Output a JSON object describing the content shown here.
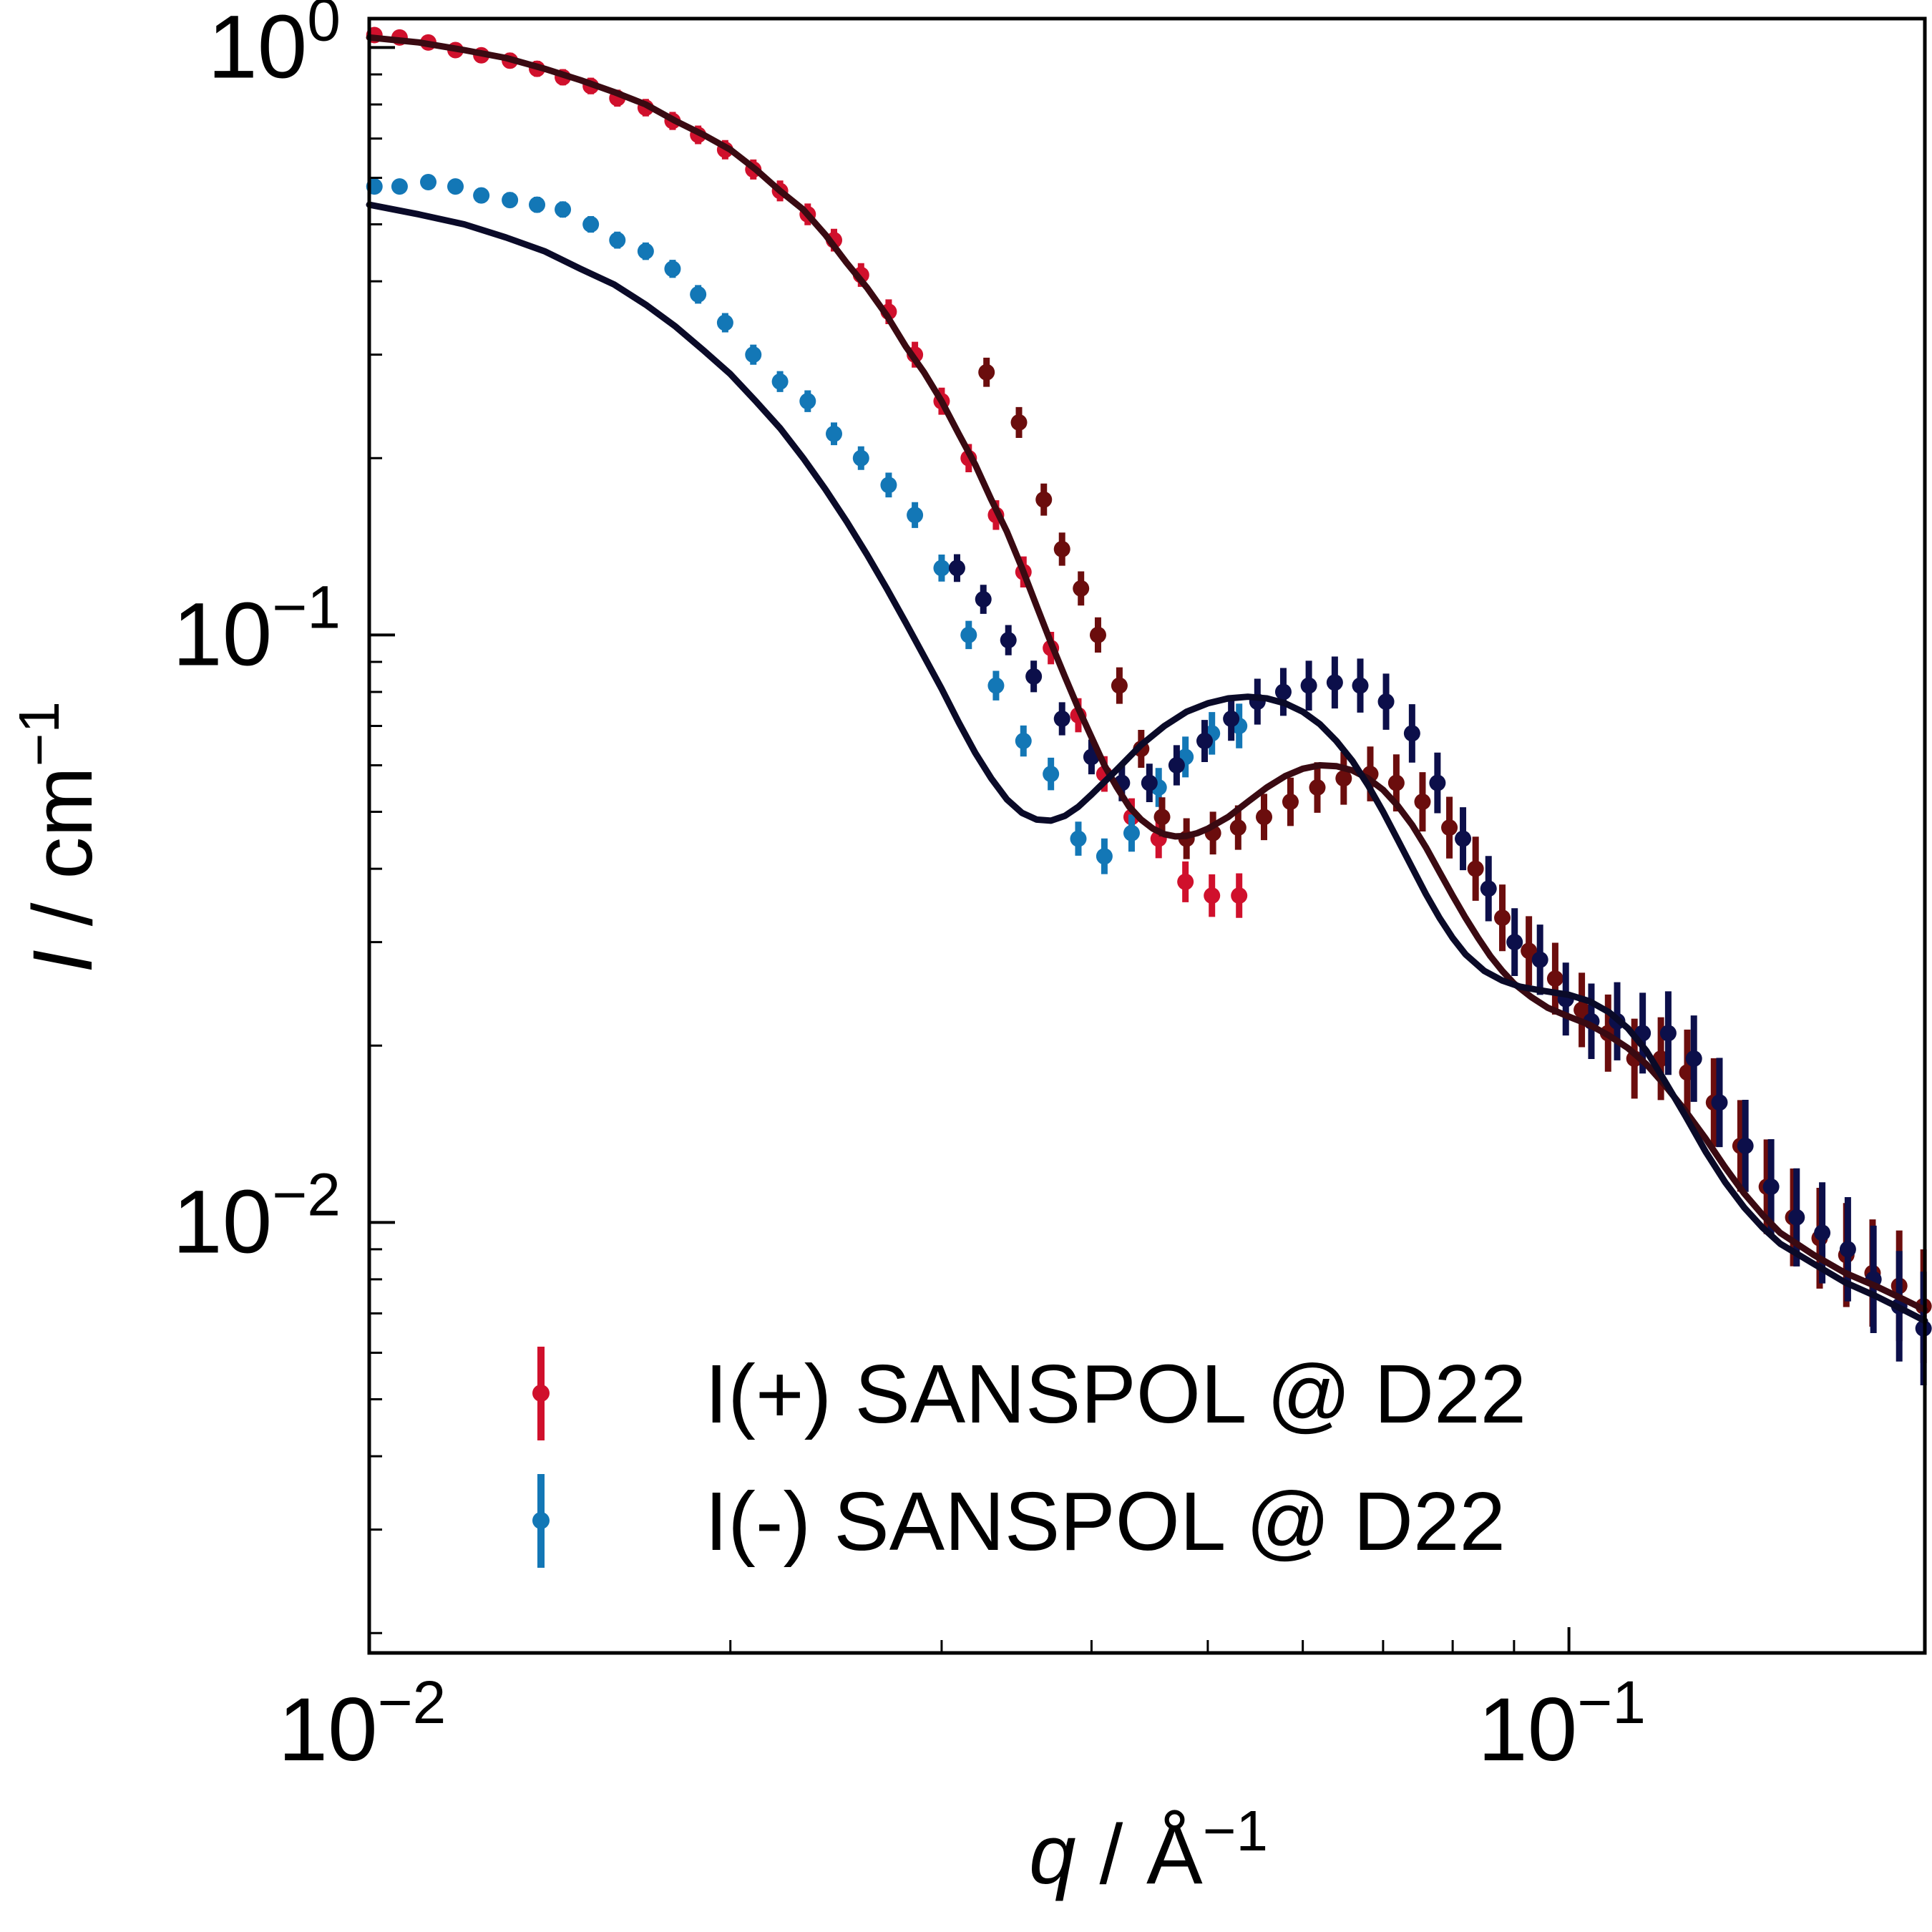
{
  "chart_data": {
    "type": "scatter",
    "x_scale": "log",
    "y_scale": "log",
    "xlim": [
      0.01,
      0.198
    ],
    "ylim": [
      0.00185,
      1.12
    ],
    "grid": false,
    "legend_placement": "lower-center",
    "xlabel": {
      "var": "q",
      "sep": " / ",
      "unit": "Å",
      "exp": "−1"
    },
    "ylabel": {
      "var": "I",
      "sep": " / ",
      "unit": "cm",
      "exp": "−1"
    },
    "x_ticks": [
      {
        "value": 0.01,
        "base": "10",
        "exp": "−2"
      },
      {
        "value": 0.1,
        "base": "10",
        "exp": "−1"
      }
    ],
    "y_ticks": [
      {
        "value": 0.01,
        "base": "10",
        "exp": "−2"
      },
      {
        "value": 0.1,
        "base": "10",
        "exp": "−1"
      },
      {
        "value": 1,
        "base": "10",
        "exp": "0"
      }
    ],
    "series": [
      {
        "name": "I(+) SANSPOL @ D22",
        "kind": "data",
        "color": "#d0102c",
        "color_dark": "#6b0d0d",
        "points": [
          [
            0.0101,
            1.05
          ],
          [
            0.0106,
            1.04
          ],
          [
            0.0112,
            1.02
          ],
          [
            0.0118,
            0.99
          ],
          [
            0.0124,
            0.97
          ],
          [
            0.0131,
            0.95
          ],
          [
            0.0138,
            0.92
          ],
          [
            0.0145,
            0.89
          ],
          [
            0.0153,
            0.86
          ],
          [
            0.0161,
            0.82
          ],
          [
            0.017,
            0.79
          ],
          [
            0.0179,
            0.75
          ],
          [
            0.0188,
            0.71
          ],
          [
            0.0198,
            0.67
          ],
          [
            0.0209,
            0.62
          ],
          [
            0.022,
            0.57
          ],
          [
            0.0232,
            0.52
          ],
          [
            0.0244,
            0.47
          ],
          [
            0.0257,
            0.41
          ],
          [
            0.0271,
            0.355
          ],
          [
            0.0285,
            0.3
          ],
          [
            0.03,
            0.25
          ],
          [
            0.0316,
            0.2
          ],
          [
            0.0333,
            0.16
          ],
          [
            0.0351,
            0.128
          ],
          [
            0.037,
            0.095
          ],
          [
            0.039,
            0.073
          ],
          [
            0.041,
            0.058
          ],
          [
            0.0432,
            0.049
          ],
          [
            0.0455,
            0.045
          ],
          [
            0.0479,
            0.038
          ],
          [
            0.0504,
            0.036
          ],
          [
            0.0531,
            0.036
          ]
        ],
        "dark_points": [
          [
            0.0327,
            0.28
          ],
          [
            0.0348,
            0.23
          ],
          [
            0.0365,
            0.17
          ],
          [
            0.0378,
            0.14
          ],
          [
            0.0392,
            0.12
          ],
          [
            0.0405,
            0.1
          ],
          [
            0.0422,
            0.082
          ],
          [
            0.044,
            0.064
          ],
          [
            0.0458,
            0.049
          ],
          [
            0.048,
            0.045
          ],
          [
            0.0505,
            0.046
          ],
          [
            0.053,
            0.047
          ],
          [
            0.0557,
            0.049
          ],
          [
            0.0586,
            0.052
          ],
          [
            0.0617,
            0.055
          ],
          [
            0.0649,
            0.057
          ],
          [
            0.0683,
            0.058
          ],
          [
            0.0718,
            0.056
          ],
          [
            0.0755,
            0.052
          ],
          [
            0.0795,
            0.047
          ],
          [
            0.0836,
            0.04
          ],
          [
            0.088,
            0.033
          ],
          [
            0.0926,
            0.029
          ],
          [
            0.0974,
            0.026
          ],
          [
            0.1025,
            0.023
          ],
          [
            0.1078,
            0.021
          ],
          [
            0.1134,
            0.019
          ],
          [
            0.1193,
            0.019
          ],
          [
            0.1255,
            0.018
          ],
          [
            0.1321,
            0.016
          ],
          [
            0.139,
            0.0135
          ],
          [
            0.1462,
            0.0115
          ],
          [
            0.1538,
            0.0102
          ],
          [
            0.1618,
            0.0094
          ],
          [
            0.1703,
            0.0088
          ],
          [
            0.1791,
            0.0082
          ],
          [
            0.1885,
            0.0078
          ],
          [
            0.1975,
            0.0072
          ]
        ]
      },
      {
        "name": "I(-) SANSPOL @ D22",
        "kind": "data",
        "color": "#1377b6",
        "color_dark": "#0c0f4a",
        "points": [
          [
            0.0101,
            0.58
          ],
          [
            0.0106,
            0.58
          ],
          [
            0.0112,
            0.59
          ],
          [
            0.0118,
            0.58
          ],
          [
            0.0124,
            0.56
          ],
          [
            0.0131,
            0.55
          ],
          [
            0.0138,
            0.54
          ],
          [
            0.0145,
            0.53
          ],
          [
            0.0153,
            0.5
          ],
          [
            0.0161,
            0.47
          ],
          [
            0.017,
            0.45
          ],
          [
            0.0179,
            0.42
          ],
          [
            0.0188,
            0.38
          ],
          [
            0.0198,
            0.34
          ],
          [
            0.0209,
            0.3
          ],
          [
            0.022,
            0.27
          ],
          [
            0.0232,
            0.25
          ],
          [
            0.0244,
            0.22
          ],
          [
            0.0257,
            0.2
          ],
          [
            0.0271,
            0.18
          ],
          [
            0.0285,
            0.16
          ],
          [
            0.03,
            0.13
          ],
          [
            0.0316,
            0.1
          ],
          [
            0.0333,
            0.082
          ],
          [
            0.0351,
            0.066
          ],
          [
            0.037,
            0.058
          ],
          [
            0.039,
            0.045
          ],
          [
            0.041,
            0.042
          ],
          [
            0.0432,
            0.046
          ],
          [
            0.0455,
            0.055
          ],
          [
            0.0479,
            0.062
          ],
          [
            0.0504,
            0.068
          ],
          [
            0.0531,
            0.07
          ]
        ],
        "dark_points": [
          [
            0.0309,
            0.13
          ],
          [
            0.0325,
            0.115
          ],
          [
            0.0341,
            0.098
          ],
          [
            0.0358,
            0.085
          ],
          [
            0.0378,
            0.072
          ],
          [
            0.04,
            0.062
          ],
          [
            0.0424,
            0.056
          ],
          [
            0.0447,
            0.056
          ],
          [
            0.0471,
            0.06
          ],
          [
            0.0497,
            0.066
          ],
          [
            0.0523,
            0.072
          ],
          [
            0.055,
            0.077
          ],
          [
            0.0578,
            0.08
          ],
          [
            0.0607,
            0.082
          ],
          [
            0.0638,
            0.083
          ],
          [
            0.067,
            0.082
          ],
          [
            0.0704,
            0.077
          ],
          [
            0.074,
            0.068
          ],
          [
            0.0777,
            0.056
          ],
          [
            0.0816,
            0.045
          ],
          [
            0.0857,
            0.037
          ],
          [
            0.0901,
            0.03
          ],
          [
            0.0946,
            0.028
          ],
          [
            0.0994,
            0.024
          ],
          [
            0.1044,
            0.022
          ],
          [
            0.1097,
            0.022
          ],
          [
            0.1152,
            0.021
          ],
          [
            0.121,
            0.021
          ],
          [
            0.1271,
            0.019
          ],
          [
            0.1335,
            0.016
          ],
          [
            0.1403,
            0.0135
          ],
          [
            0.1474,
            0.0115
          ],
          [
            0.1548,
            0.0102
          ],
          [
            0.1626,
            0.0096
          ],
          [
            0.1708,
            0.009
          ],
          [
            0.1794,
            0.008
          ],
          [
            0.1885,
            0.0072
          ],
          [
            0.1975,
            0.0066
          ]
        ]
      },
      {
        "name": "",
        "kind": "fit",
        "color": "#3a0a12",
        "points": [
          [
            0.01,
            1.04
          ],
          [
            0.011,
            1.02
          ],
          [
            0.012,
            0.99
          ],
          [
            0.013,
            0.96
          ],
          [
            0.014,
            0.92
          ],
          [
            0.015,
            0.88
          ],
          [
            0.016,
            0.84
          ],
          [
            0.017,
            0.8
          ],
          [
            0.018,
            0.75
          ],
          [
            0.019,
            0.71
          ],
          [
            0.02,
            0.67
          ],
          [
            0.021,
            0.62
          ],
          [
            0.022,
            0.57
          ],
          [
            0.023,
            0.53
          ],
          [
            0.024,
            0.48
          ],
          [
            0.025,
            0.43
          ],
          [
            0.026,
            0.39
          ],
          [
            0.027,
            0.35
          ],
          [
            0.028,
            0.31
          ],
          [
            0.029,
            0.28
          ],
          [
            0.03,
            0.25
          ],
          [
            0.031,
            0.22
          ],
          [
            0.032,
            0.195
          ],
          [
            0.033,
            0.17
          ],
          [
            0.034,
            0.15
          ],
          [
            0.035,
            0.13
          ],
          [
            0.036,
            0.112
          ],
          [
            0.037,
            0.097
          ],
          [
            0.038,
            0.085
          ],
          [
            0.039,
            0.075
          ],
          [
            0.04,
            0.067
          ],
          [
            0.041,
            0.06
          ],
          [
            0.042,
            0.055
          ],
          [
            0.043,
            0.051
          ],
          [
            0.044,
            0.0485
          ],
          [
            0.045,
            0.0468
          ],
          [
            0.046,
            0.0458
          ],
          [
            0.047,
            0.0454
          ],
          [
            0.048,
            0.0455
          ],
          [
            0.049,
            0.046
          ],
          [
            0.05,
            0.0468
          ],
          [
            0.052,
            0.049
          ],
          [
            0.054,
            0.052
          ],
          [
            0.056,
            0.055
          ],
          [
            0.058,
            0.0575
          ],
          [
            0.06,
            0.0592
          ],
          [
            0.062,
            0.06
          ],
          [
            0.064,
            0.0598
          ],
          [
            0.066,
            0.0588
          ],
          [
            0.068,
            0.057
          ],
          [
            0.07,
            0.0545
          ],
          [
            0.072,
            0.0512
          ],
          [
            0.074,
            0.0475
          ],
          [
            0.076,
            0.0435
          ],
          [
            0.078,
            0.0395
          ],
          [
            0.08,
            0.036
          ],
          [
            0.082,
            0.033
          ],
          [
            0.084,
            0.0305
          ],
          [
            0.086,
            0.0284
          ],
          [
            0.088,
            0.0268
          ],
          [
            0.09,
            0.0255
          ],
          [
            0.093,
            0.0242
          ],
          [
            0.096,
            0.0232
          ],
          [
            0.1,
            0.0224
          ],
          [
            0.104,
            0.0217
          ],
          [
            0.108,
            0.0208
          ],
          [
            0.112,
            0.0198
          ],
          [
            0.116,
            0.0186
          ],
          [
            0.12,
            0.0172
          ],
          [
            0.125,
            0.0155
          ],
          [
            0.13,
            0.0139
          ],
          [
            0.135,
            0.0124
          ],
          [
            0.14,
            0.0112
          ],
          [
            0.145,
            0.0103
          ],
          [
            0.15,
            0.0096
          ],
          [
            0.16,
            0.0088
          ],
          [
            0.17,
            0.0082
          ],
          [
            0.18,
            0.0078
          ],
          [
            0.19,
            0.0074
          ],
          [
            0.198,
            0.0071
          ]
        ]
      },
      {
        "name": "",
        "kind": "fit",
        "color": "#0a0a28",
        "points": [
          [
            0.01,
            0.54
          ],
          [
            0.011,
            0.52
          ],
          [
            0.012,
            0.5
          ],
          [
            0.013,
            0.475
          ],
          [
            0.014,
            0.45
          ],
          [
            0.015,
            0.42
          ],
          [
            0.016,
            0.395
          ],
          [
            0.017,
            0.365
          ],
          [
            0.018,
            0.335
          ],
          [
            0.019,
            0.305
          ],
          [
            0.02,
            0.278
          ],
          [
            0.021,
            0.25
          ],
          [
            0.022,
            0.225
          ],
          [
            0.023,
            0.2
          ],
          [
            0.024,
            0.177
          ],
          [
            0.025,
            0.156
          ],
          [
            0.026,
            0.137
          ],
          [
            0.027,
            0.12
          ],
          [
            0.028,
            0.105
          ],
          [
            0.029,
            0.092
          ],
          [
            0.03,
            0.081
          ],
          [
            0.031,
            0.071
          ],
          [
            0.032,
            0.063
          ],
          [
            0.033,
            0.057
          ],
          [
            0.034,
            0.0525
          ],
          [
            0.035,
            0.0498
          ],
          [
            0.036,
            0.0485
          ],
          [
            0.037,
            0.0483
          ],
          [
            0.038,
            0.0492
          ],
          [
            0.039,
            0.051
          ],
          [
            0.04,
            0.0535
          ],
          [
            0.042,
            0.059
          ],
          [
            0.044,
            0.065
          ],
          [
            0.046,
            0.07
          ],
          [
            0.048,
            0.074
          ],
          [
            0.05,
            0.0765
          ],
          [
            0.052,
            0.078
          ],
          [
            0.054,
            0.0785
          ],
          [
            0.056,
            0.078
          ],
          [
            0.058,
            0.0765
          ],
          [
            0.06,
            0.074
          ],
          [
            0.062,
            0.0705
          ],
          [
            0.064,
            0.066
          ],
          [
            0.066,
            0.061
          ],
          [
            0.068,
            0.0555
          ],
          [
            0.07,
            0.05
          ],
          [
            0.072,
            0.0448
          ],
          [
            0.074,
            0.0402
          ],
          [
            0.076,
            0.0362
          ],
          [
            0.078,
            0.033
          ],
          [
            0.08,
            0.0305
          ],
          [
            0.082,
            0.0286
          ],
          [
            0.085,
            0.0268
          ],
          [
            0.088,
            0.0258
          ],
          [
            0.091,
            0.0252
          ],
          [
            0.095,
            0.0248
          ],
          [
            0.1,
            0.0244
          ],
          [
            0.104,
            0.0238
          ],
          [
            0.108,
            0.0228
          ],
          [
            0.112,
            0.0214
          ],
          [
            0.116,
            0.0196
          ],
          [
            0.12,
            0.0175
          ],
          [
            0.125,
            0.0152
          ],
          [
            0.13,
            0.0132
          ],
          [
            0.135,
            0.0117
          ],
          [
            0.14,
            0.0106
          ],
          [
            0.145,
            0.0098
          ],
          [
            0.15,
            0.0092
          ],
          [
            0.16,
            0.0085
          ],
          [
            0.17,
            0.0079
          ],
          [
            0.18,
            0.0075
          ],
          [
            0.19,
            0.0071
          ],
          [
            0.198,
            0.0068
          ]
        ]
      }
    ]
  }
}
